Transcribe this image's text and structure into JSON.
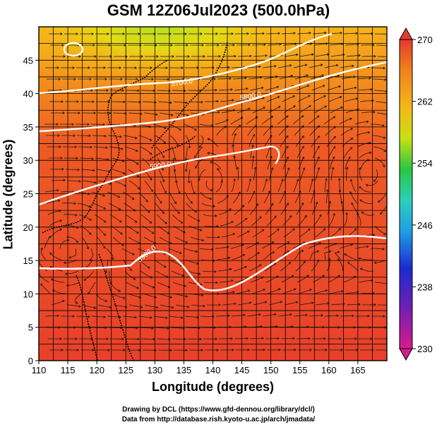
{
  "title": "GSM 12Z06Jul2023 (500.0hPa)",
  "map": {
    "xlabel": "Longitude (degrees)",
    "ylabel": "Latitude  (degrees)",
    "x_ticks": [
      "110",
      "115",
      "120",
      "125",
      "130",
      "135",
      "140",
      "145",
      "150",
      "155",
      "160",
      "165"
    ],
    "y_ticks": [
      "0",
      "5",
      "10",
      "15",
      "20",
      "25",
      "30",
      "35",
      "40",
      "45"
    ],
    "lon_range": [
      110,
      170
    ],
    "lat_range": [
      0,
      50
    ],
    "contour_labels": [
      "5700.0",
      "5800.0",
      "5900.0",
      "5900.0"
    ],
    "field": "temperature",
    "overlay": "streamlines"
  },
  "colorbar": {
    "ticks": [
      "270",
      "262",
      "254",
      "246",
      "238",
      "230"
    ],
    "range": [
      230,
      270
    ],
    "colors": [
      "#d81b8c",
      "#6b1fb5",
      "#1c2bd0",
      "#1f8fe0",
      "#2bd4c8",
      "#28c840",
      "#8fdc1a",
      "#e6e010",
      "#f6b816",
      "#f08a1e",
      "#ef5a24",
      "#e63a2e"
    ]
  },
  "credits": {
    "line1": "Drawing by DCL (https://www.gfd-dennou.org/library/dcl/)",
    "line2": "Data from http://database.rish.kyoto-u.ac.jp/arch/jmadata/"
  }
}
